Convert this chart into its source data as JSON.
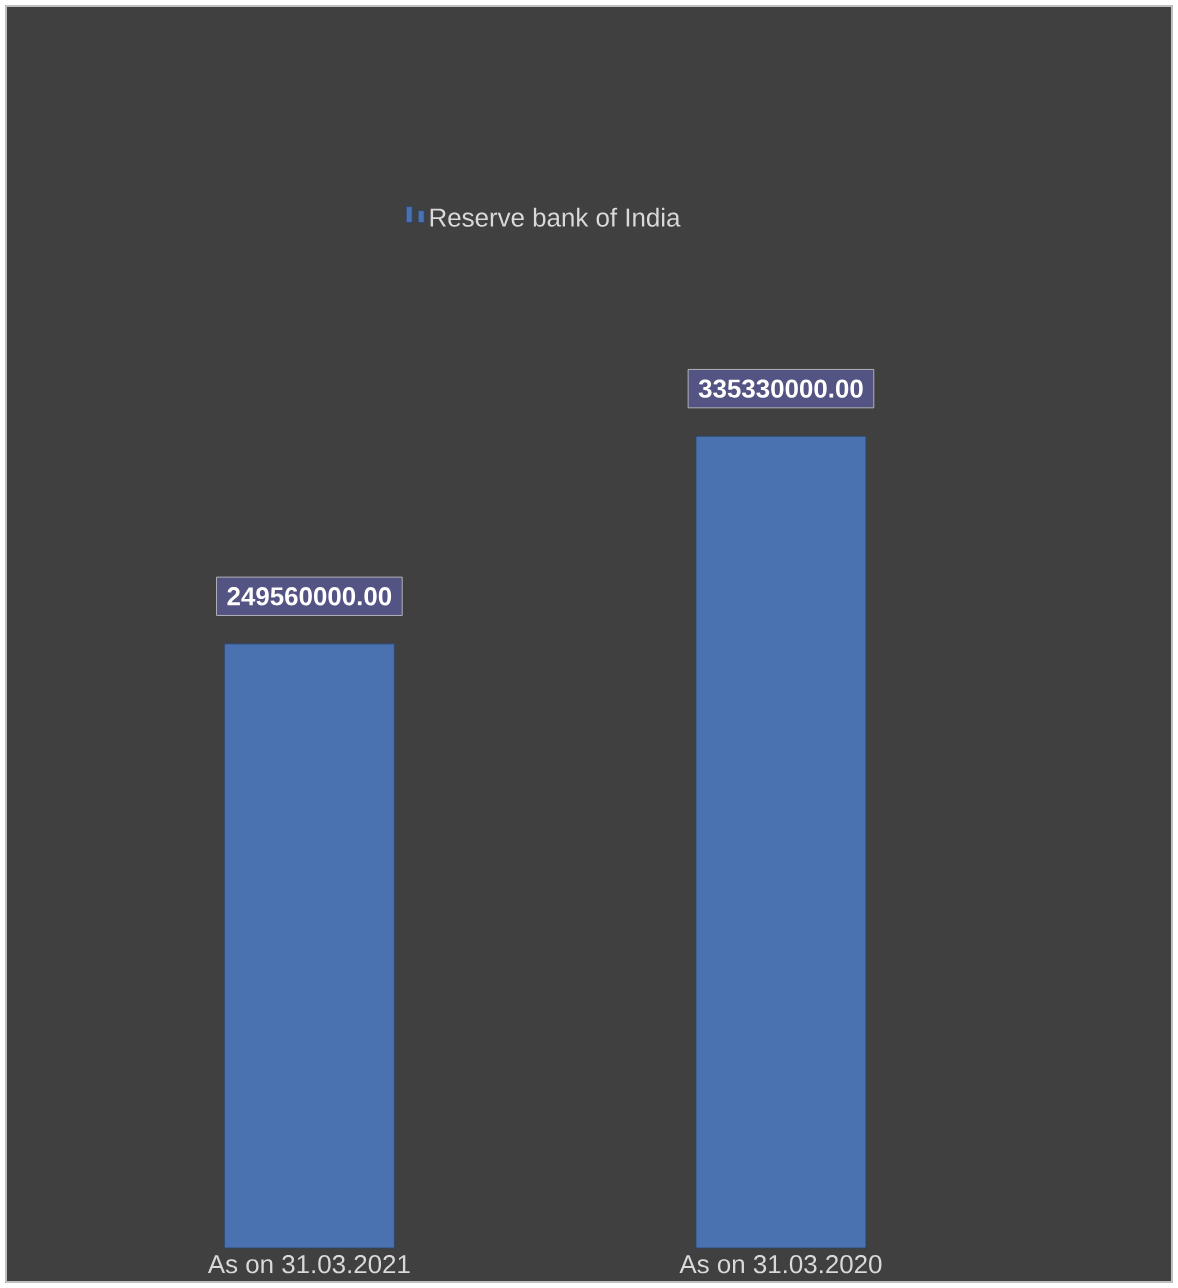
{
  "chart_data": {
    "type": "bar",
    "categories": [
      "As on 31.03.2021",
      "As on 31.03.2020"
    ],
    "series": [
      {
        "name": "Reserve bank of India",
        "color": "#4a72b0",
        "values": [
          249560000.0,
          335330000.0
        ],
        "value_labels": [
          "249560000.00",
          "335330000.00"
        ]
      }
    ],
    "legend": "top"
  }
}
